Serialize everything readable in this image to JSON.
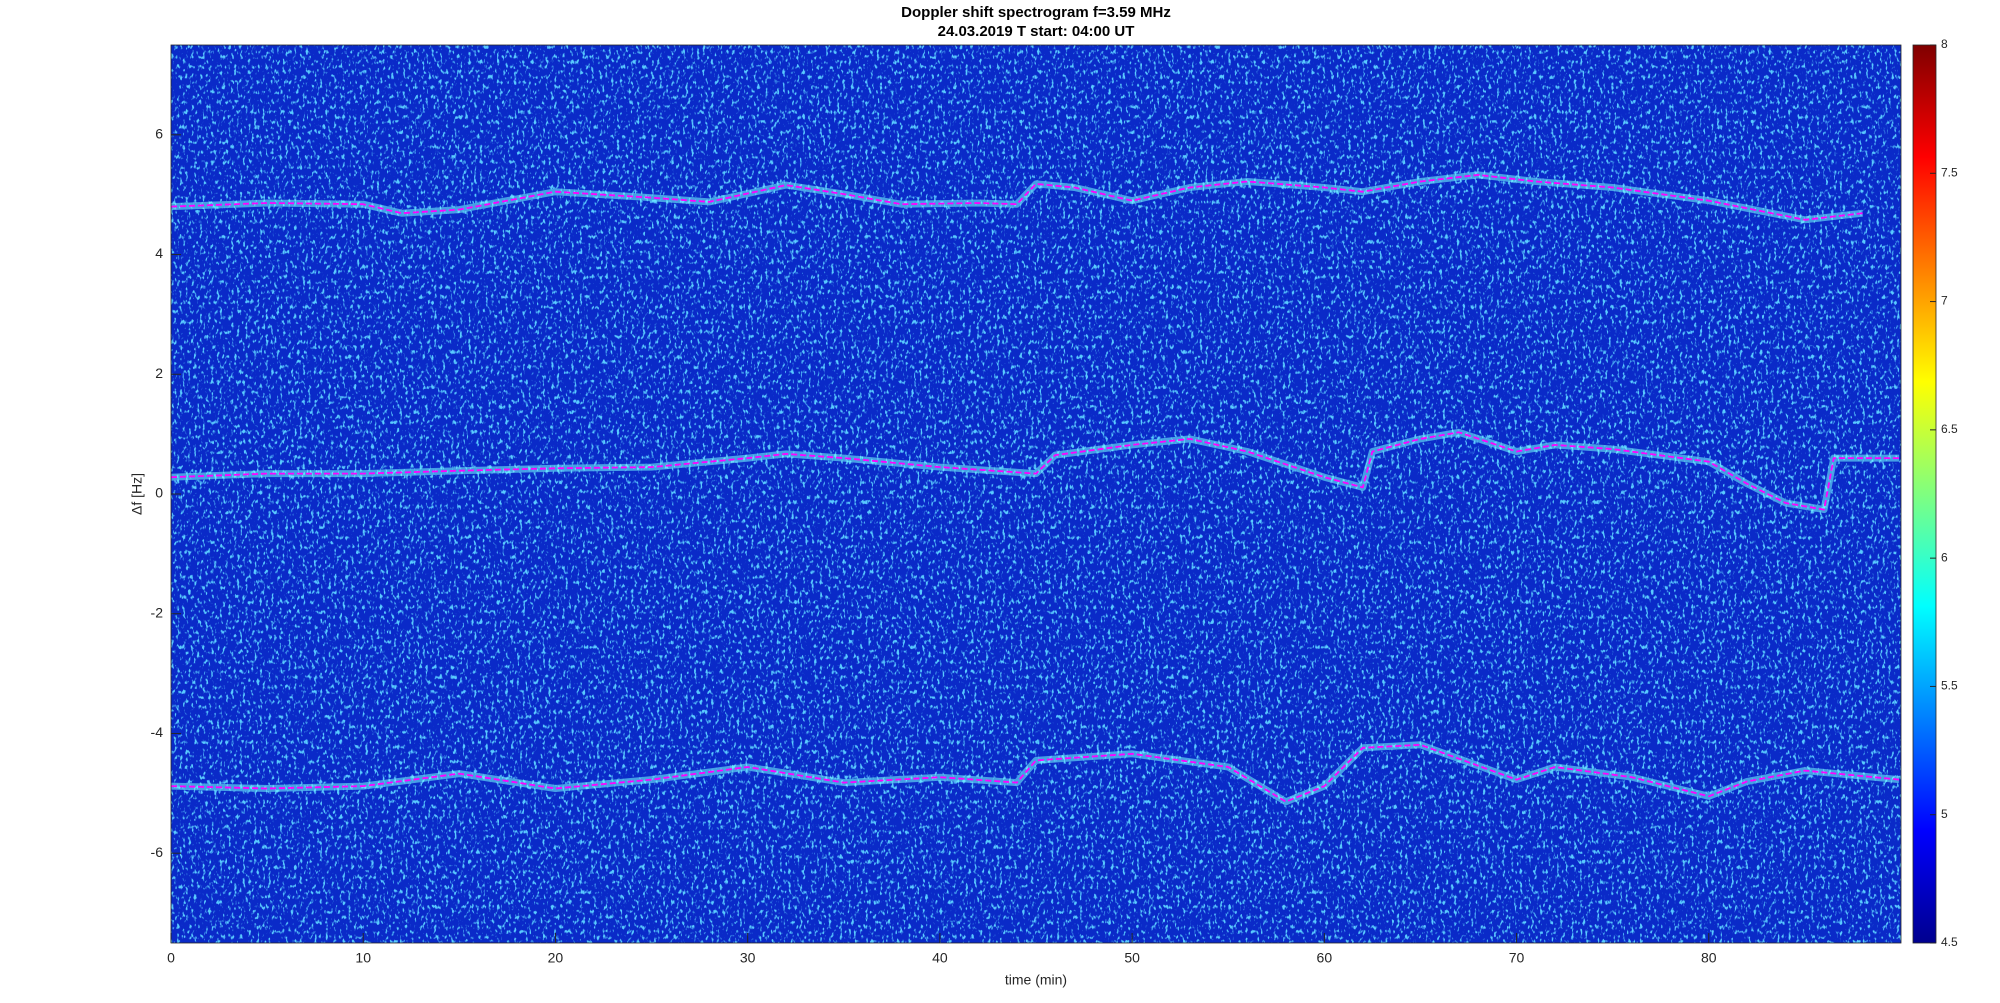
{
  "chart_data": {
    "type": "line",
    "title": "Doppler shift spectrogram f=3.59 MHz",
    "subtitle": "24.03.2019    T start: 04:00 UT",
    "x_label": "time (min)",
    "y_label": "Δf [Hz]",
    "xlim": [
      0,
      90
    ],
    "xticks": [
      0,
      10,
      20,
      30,
      40,
      50,
      60,
      70,
      80
    ],
    "ylim": [
      -7.5,
      7.5
    ],
    "yticks": [
      -6,
      -4,
      -2,
      0,
      2,
      4,
      6
    ],
    "colormap": "jet",
    "clim": [
      4.5,
      8
    ],
    "cticks": [
      4.5,
      5,
      5.5,
      6,
      6.5,
      7,
      7.5,
      8
    ],
    "series": [
      {
        "color": "#ff00ff",
        "x": [
          0,
          5,
          10,
          12,
          15,
          20,
          25,
          28,
          32,
          35,
          38,
          42,
          44,
          45,
          47,
          50,
          53,
          56,
          60,
          62,
          65,
          68,
          71,
          75,
          80,
          85,
          88
        ],
        "values": [
          4.8,
          4.86,
          4.84,
          4.69,
          4.75,
          5.05,
          4.95,
          4.88,
          5.16,
          5.01,
          4.84,
          4.86,
          4.84,
          5.18,
          5.12,
          4.9,
          5.12,
          5.22,
          5.12,
          5.05,
          5.22,
          5.33,
          5.22,
          5.12,
          4.9,
          4.58,
          4.69
        ]
      },
      {
        "color": "#ff00ff",
        "x": [
          0,
          5,
          10,
          15,
          20,
          25,
          30,
          32,
          35,
          40,
          45,
          46,
          50,
          53,
          56,
          60,
          62,
          62.5,
          65,
          67,
          70,
          72,
          75,
          80,
          82,
          84,
          86,
          86.5,
          89.9
        ],
        "values": [
          0.28,
          0.34,
          0.34,
          0.39,
          0.43,
          0.45,
          0.6,
          0.67,
          0.6,
          0.45,
          0.34,
          0.65,
          0.82,
          0.92,
          0.71,
          0.28,
          0.11,
          0.71,
          0.92,
          1.03,
          0.71,
          0.82,
          0.75,
          0.54,
          0.17,
          -0.15,
          -0.26,
          0.6,
          0.6
        ]
      },
      {
        "color": "#ff00ff",
        "x": [
          0,
          5,
          10,
          15,
          20,
          25,
          30,
          35,
          40,
          44,
          45,
          50,
          55,
          58,
          60,
          62,
          65,
          70,
          72,
          76,
          80,
          82,
          85,
          89.9
        ],
        "values": [
          -4.88,
          -4.92,
          -4.88,
          -4.67,
          -4.92,
          -4.77,
          -4.56,
          -4.82,
          -4.73,
          -4.82,
          -4.45,
          -4.34,
          -4.56,
          -5.14,
          -4.88,
          -4.24,
          -4.19,
          -4.77,
          -4.56,
          -4.73,
          -5.05,
          -4.8,
          -4.62,
          -4.77
        ]
      }
    ]
  }
}
